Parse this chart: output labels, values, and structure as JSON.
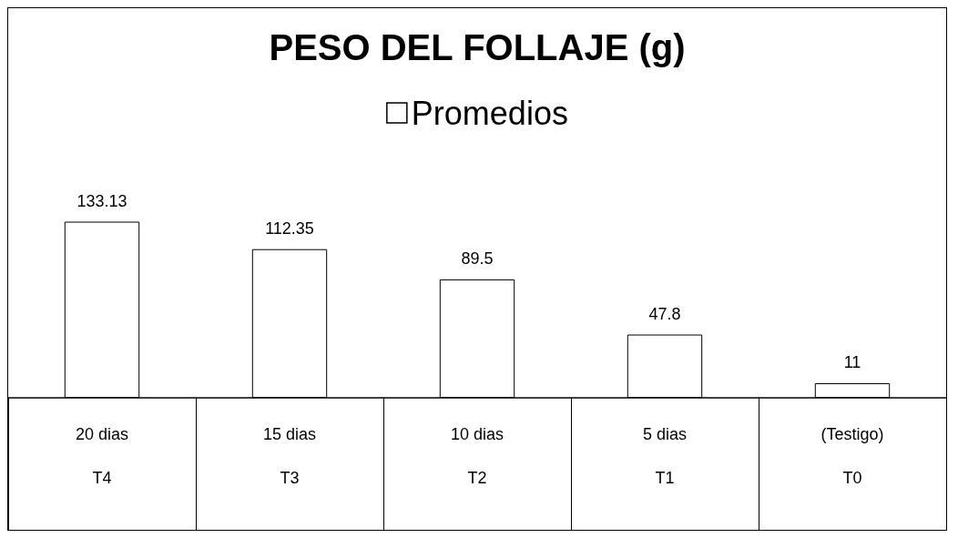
{
  "chart_data": {
    "type": "bar",
    "title": "PESO DEL FOLLAJE (g)",
    "categories": [
      "20 dias\n\nT4",
      "15 dias\n\nT3",
      "10 dias\n\nT2",
      "5 dias\n\nT1",
      "(Testigo)\n\nT0"
    ],
    "series": [
      {
        "name": "Promedios",
        "color": "#ffffff",
        "values": [
          133.13,
          112.35,
          89.5,
          47.8,
          11
        ]
      }
    ],
    "data_labels": true,
    "legend": "top",
    "grid": false
  }
}
